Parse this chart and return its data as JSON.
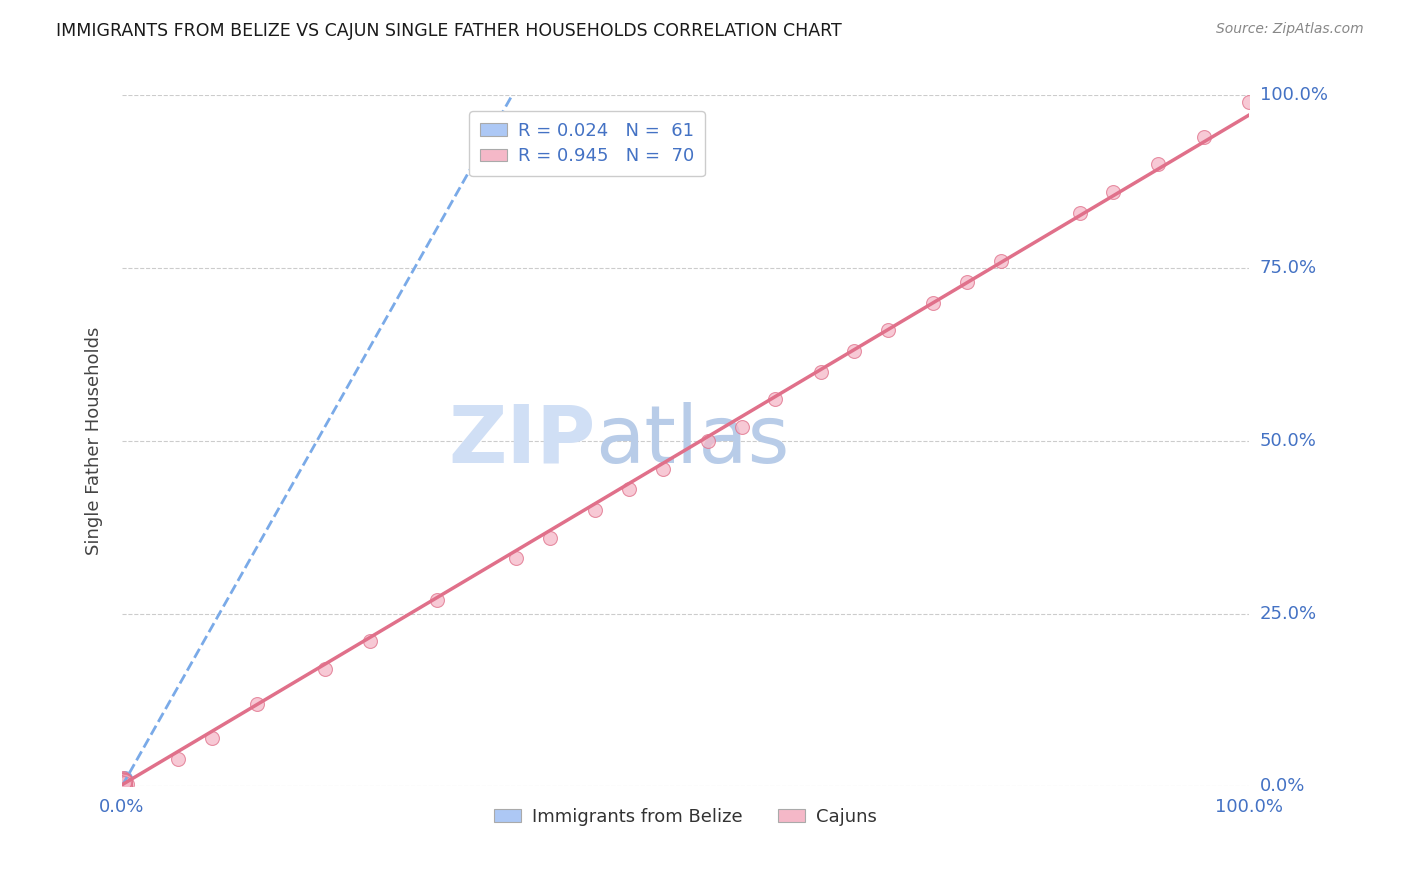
{
  "title": "IMMIGRANTS FROM BELIZE VS CAJUN SINGLE FATHER HOUSEHOLDS CORRELATION CHART",
  "source": "Source: ZipAtlas.com",
  "ylabel": "Single Father Households",
  "ytick_labels": [
    "0.0%",
    "25.0%",
    "50.0%",
    "75.0%",
    "100.0%"
  ],
  "ytick_values": [
    0.0,
    0.25,
    0.5,
    0.75,
    1.0
  ],
  "xlim": [
    0.0,
    1.0
  ],
  "ylim": [
    0.0,
    1.0
  ],
  "watermark_zip": "ZIP",
  "watermark_atlas": "atlas",
  "legend_entries": [
    {
      "label": "R = 0.024   N =  61",
      "color_face": "#adc8f5",
      "color_edge": "#adc8f5"
    },
    {
      "label": "R = 0.945   N =  70",
      "color_face": "#f5b8c8",
      "color_edge": "#f5b8c8"
    }
  ],
  "legend_label_bottom": [
    "Immigrants from Belize",
    "Cajuns"
  ],
  "belize_scatter_x": [
    0.001,
    0.002,
    0.001,
    0.003,
    0.001,
    0.002,
    0.001,
    0.002,
    0.001,
    0.003,
    0.002,
    0.001,
    0.002,
    0.001,
    0.003,
    0.002,
    0.001,
    0.002,
    0.001,
    0.002,
    0.001,
    0.003,
    0.002,
    0.001,
    0.002,
    0.001,
    0.003,
    0.002,
    0.001,
    0.002,
    0.001,
    0.002,
    0.003,
    0.001,
    0.002,
    0.001,
    0.002,
    0.003,
    0.001,
    0.002,
    0.001,
    0.002,
    0.001,
    0.003,
    0.002,
    0.001,
    0.002,
    0.001,
    0.002,
    0.003,
    0.001,
    0.002,
    0.001,
    0.002,
    0.001,
    0.003,
    0.002,
    0.001,
    0.002,
    0.001,
    0.002
  ],
  "belize_scatter_y": [
    0.005,
    0.008,
    0.003,
    0.01,
    0.006,
    0.004,
    0.007,
    0.009,
    0.002,
    0.012,
    0.005,
    0.003,
    0.006,
    0.004,
    0.011,
    0.007,
    0.003,
    0.008,
    0.005,
    0.006,
    0.004,
    0.01,
    0.007,
    0.003,
    0.006,
    0.004,
    0.009,
    0.005,
    0.003,
    0.007,
    0.004,
    0.006,
    0.01,
    0.003,
    0.007,
    0.004,
    0.006,
    0.009,
    0.003,
    0.005,
    0.004,
    0.006,
    0.003,
    0.008,
    0.005,
    0.003,
    0.007,
    0.004,
    0.006,
    0.009,
    0.003,
    0.005,
    0.004,
    0.007,
    0.003,
    0.009,
    0.005,
    0.003,
    0.007,
    0.004,
    0.006
  ],
  "cajun_scatter_x": [
    0.001,
    0.002,
    0.001,
    0.003,
    0.001,
    0.002,
    0.001,
    0.003,
    0.002,
    0.001,
    0.002,
    0.001,
    0.003,
    0.002,
    0.001,
    0.002,
    0.001,
    0.003,
    0.002,
    0.001,
    0.004,
    0.002,
    0.001,
    0.003,
    0.002,
    0.001,
    0.002,
    0.001,
    0.003,
    0.002,
    0.001,
    0.002,
    0.001,
    0.003,
    0.002,
    0.001,
    0.002,
    0.001,
    0.003,
    0.002,
    0.001,
    0.002,
    0.001,
    0.003,
    0.002,
    0.12,
    0.08,
    0.18,
    0.22,
    0.05,
    0.35,
    0.42,
    0.28,
    0.55,
    0.48,
    0.62,
    0.38,
    0.72,
    0.65,
    0.78,
    0.85,
    0.58,
    0.45,
    0.68,
    0.52,
    0.75,
    0.88,
    0.92,
    0.96,
    1.0
  ],
  "cajun_scatter_y": [
    0.005,
    0.008,
    0.003,
    0.01,
    0.006,
    0.004,
    0.007,
    0.009,
    0.002,
    0.012,
    0.005,
    0.003,
    0.006,
    0.004,
    0.011,
    0.007,
    0.003,
    0.008,
    0.005,
    0.006,
    0.004,
    0.01,
    0.007,
    0.003,
    0.006,
    0.004,
    0.009,
    0.005,
    0.003,
    0.007,
    0.004,
    0.006,
    0.01,
    0.003,
    0.007,
    0.004,
    0.006,
    0.009,
    0.003,
    0.005,
    0.004,
    0.006,
    0.003,
    0.008,
    0.005,
    0.12,
    0.07,
    0.17,
    0.21,
    0.04,
    0.33,
    0.4,
    0.27,
    0.52,
    0.46,
    0.6,
    0.36,
    0.7,
    0.63,
    0.76,
    0.83,
    0.56,
    0.43,
    0.66,
    0.5,
    0.73,
    0.86,
    0.9,
    0.94,
    0.99
  ],
  "belize_color": "#adc8f5",
  "belize_edge": "#7aaae8",
  "cajun_color": "#f5b8c8",
  "cajun_edge": "#e0708a",
  "trend_belize_color": "#7aaae8",
  "trend_cajun_color": "#e0708a",
  "grid_color": "#cccccc",
  "title_color": "#1a1a1a",
  "axis_tick_color": "#4472c4",
  "right_tick_color": "#4472c4",
  "watermark_color": "#d0dff5",
  "watermark_color2": "#b8cce8"
}
